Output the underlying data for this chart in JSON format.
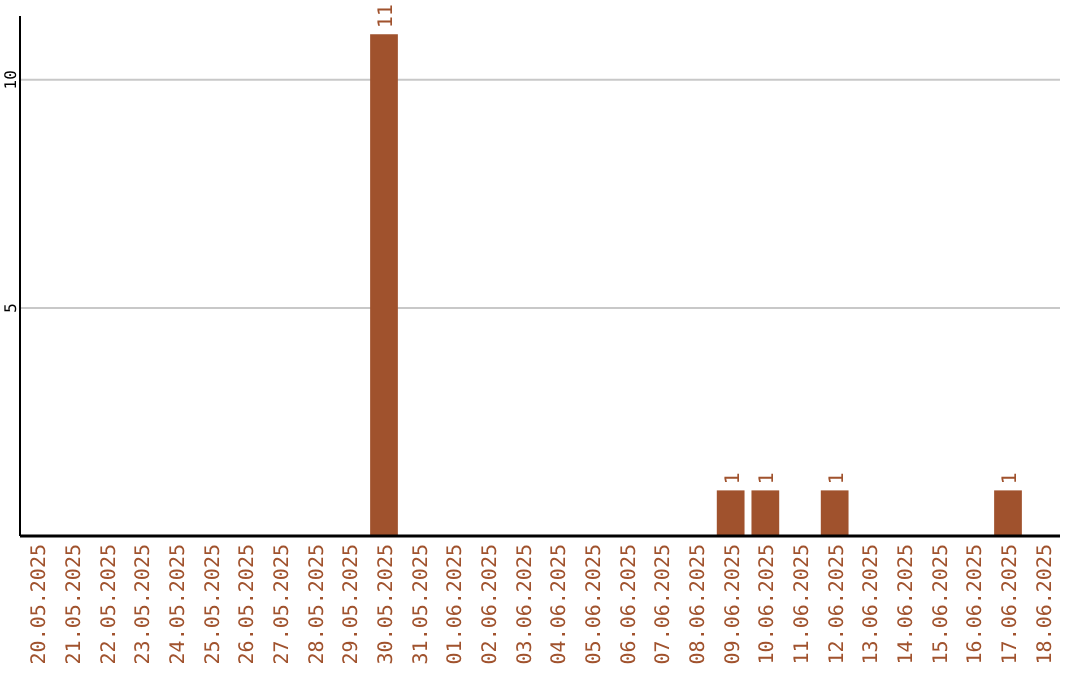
{
  "chart_data": {
    "type": "bar",
    "categories": [
      "20.05.2025",
      "21.05.2025",
      "22.05.2025",
      "23.05.2025",
      "24.05.2025",
      "25.05.2025",
      "26.05.2025",
      "27.05.2025",
      "28.05.2025",
      "29.05.2025",
      "30.05.2025",
      "31.05.2025",
      "01.06.2025",
      "02.06.2025",
      "03.06.2025",
      "04.06.2025",
      "05.06.2025",
      "06.06.2025",
      "07.06.2025",
      "08.06.2025",
      "09.06.2025",
      "10.06.2025",
      "11.06.2025",
      "12.06.2025",
      "13.06.2025",
      "14.06.2025",
      "15.06.2025",
      "16.06.2025",
      "17.06.2025",
      "18.06.2025"
    ],
    "values": [
      0,
      0,
      0,
      0,
      0,
      0,
      0,
      0,
      0,
      0,
      11,
      0,
      0,
      0,
      0,
      0,
      0,
      0,
      0,
      0,
      1,
      1,
      0,
      1,
      0,
      0,
      0,
      0,
      1,
      0
    ],
    "value_labels": [
      null,
      null,
      null,
      null,
      null,
      null,
      null,
      null,
      null,
      null,
      "11",
      null,
      null,
      null,
      null,
      null,
      null,
      null,
      null,
      null,
      "1",
      "1",
      null,
      "1",
      null,
      null,
      null,
      null,
      "1",
      null
    ],
    "color": "#a0522d",
    "ylim": [
      0,
      11.4
    ],
    "yticks": [
      5,
      10
    ],
    "grid": "y"
  }
}
